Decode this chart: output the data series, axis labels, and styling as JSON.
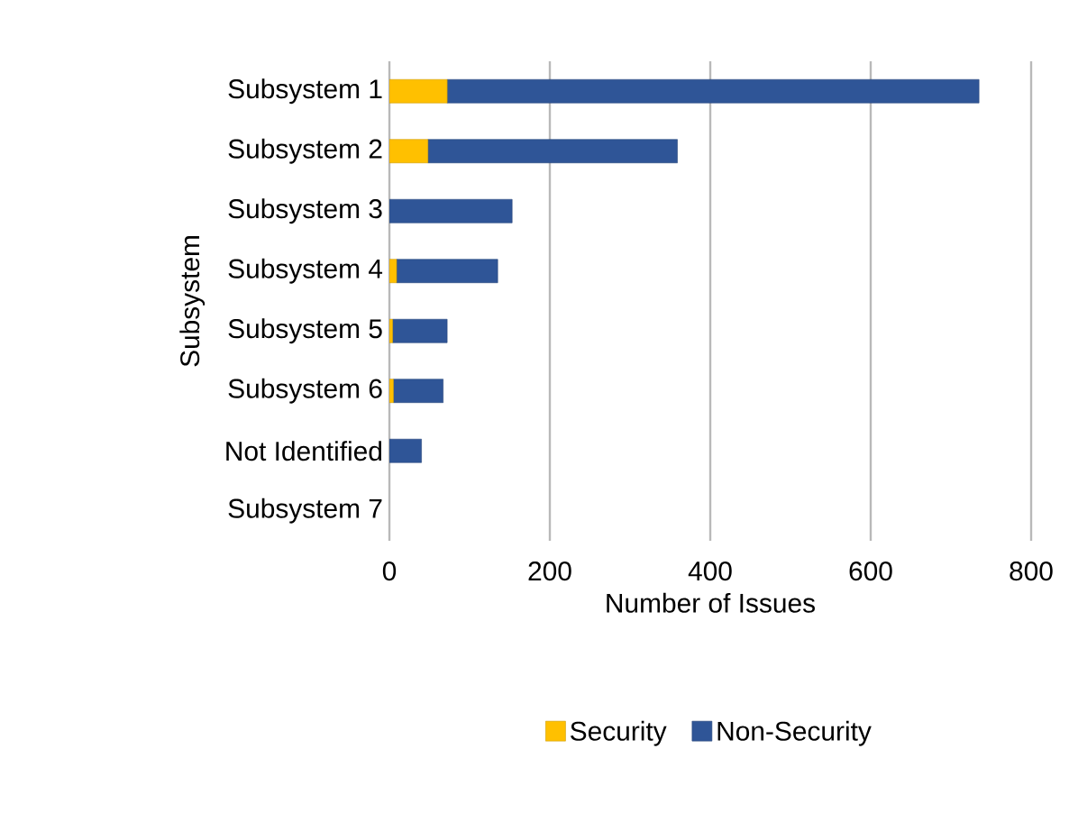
{
  "chart_data": {
    "type": "bar",
    "orientation": "horizontal",
    "stacked": true,
    "ylabel": "Subsystem",
    "xlabel": "Number of Issues",
    "categories": [
      "Subsystem 1",
      "Subsystem 2",
      "Subsystem 3",
      "Subsystem 4",
      "Subsystem 5",
      "Subsystem 6",
      "Not Identified",
      "Subsystem 7"
    ],
    "series": [
      {
        "name": "Security",
        "color": "#ffc000",
        "values": [
          72,
          48,
          0,
          9,
          4,
          5,
          0,
          0
        ]
      },
      {
        "name": "Non-Security",
        "color": "#2f5597",
        "values": [
          663,
          311,
          153,
          126,
          68,
          62,
          40,
          0
        ]
      }
    ],
    "xlim": [
      0,
      800
    ],
    "xticks": [
      0,
      200,
      400,
      600,
      800
    ],
    "grid": "x",
    "legend": "bottom"
  }
}
